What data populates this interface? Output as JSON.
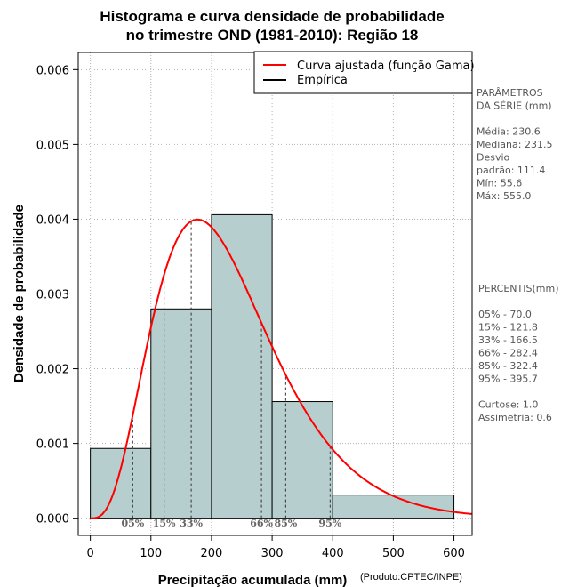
{
  "chart_data": {
    "type": "bar",
    "title_lines": [
      "Histograma e curva densidade de probabilidade",
      "no trimestre OND (1981-2010): Região 18"
    ],
    "xlabel": "Precipitação acumulada (mm)",
    "ylabel": "Densidade de probabilidade",
    "credit": "(Produto:CPTEC/INPE)",
    "xlim": [
      -20,
      630
    ],
    "ylim": [
      -0.00023,
      0.00623
    ],
    "x_ticks": [
      0,
      100,
      200,
      300,
      400,
      500,
      600
    ],
    "x_tick_labels": [
      "0",
      "100",
      "200",
      "300",
      "400",
      "500",
      "600"
    ],
    "y_ticks": [
      0,
      0.001,
      0.002,
      0.003,
      0.004,
      0.005,
      0.006
    ],
    "y_tick_labels": [
      "0.000",
      "0.001",
      "0.002",
      "0.003",
      "0.004",
      "0.005",
      "0.006"
    ],
    "grid": true,
    "bins": [
      {
        "x0": 0,
        "x1": 100,
        "density": 0.000933
      },
      {
        "x0": 100,
        "x1": 200,
        "density": 0.0028
      },
      {
        "x0": 200,
        "x1": 300,
        "density": 0.00406
      },
      {
        "x0": 300,
        "x1": 400,
        "density": 0.00156
      },
      {
        "x0": 400,
        "x1": 600,
        "density": 0.00031
      }
    ],
    "gamma_fit": {
      "shape": 4.3,
      "scale": 53.6
    },
    "curve_color": "#ff0000",
    "bar_fill": "#b6cecd",
    "legend": {
      "position": "top-right",
      "entries": [
        {
          "label": "Curva ajustada (função Gama)",
          "color": "#ff0000"
        },
        {
          "label": "Empírica",
          "color": "#000000"
        }
      ]
    },
    "percentile_markers": [
      {
        "label": "05%",
        "value": 70.0
      },
      {
        "label": "15%",
        "value": 121.8
      },
      {
        "label": "33%",
        "value": 166.5
      },
      {
        "label": "66%",
        "value": 282.4
      },
      {
        "label": "85%",
        "value": 322.4
      },
      {
        "label": "95%",
        "value": 395.7
      }
    ]
  },
  "side_panel": {
    "params_lines": [
      "PARÂMETROS",
      " DA SÉRIE (mm)",
      "",
      "Média:  230.6",
      "Mediana:  231.5",
      "Desvio",
      "padrão:  111.4",
      "Mín:  55.6",
      "Máx:  555.0"
    ],
    "percentis_lines": [
      " PERCENTIS(mm)",
      "",
      "05% -   70.0",
      "15% -   121.8",
      "33% -   166.5",
      "66% -   282.4",
      "85% -   322.4",
      "95% -   395.7",
      "",
      "Curtose:  1.0",
      "Assimetria:  0.6"
    ]
  }
}
